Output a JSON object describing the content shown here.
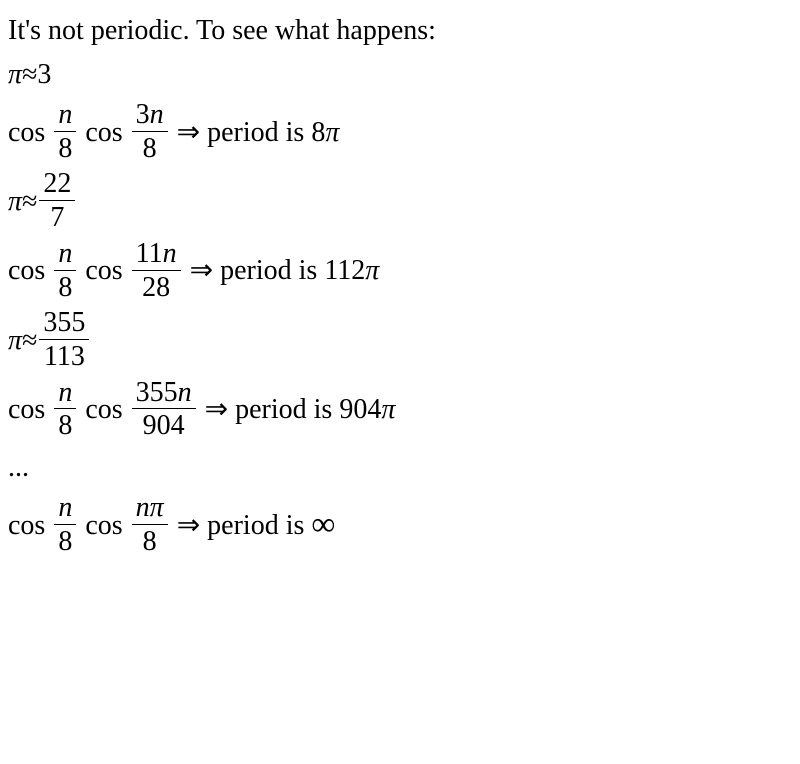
{
  "text": {
    "intro": "It's not periodic. To see what happens:",
    "ellipsis": "..."
  },
  "approx": {
    "a1_lhs": "π",
    "a1_op": "≈",
    "a1_rhs": "3",
    "a2_lhs": "π",
    "a2_op": "≈",
    "a2_num": "22",
    "a2_den": "7",
    "a3_lhs": "π",
    "a3_op": "≈",
    "a3_num": "355",
    "a3_den": "113"
  },
  "expr": {
    "cos": "cos",
    "arrow": "⇒",
    "period_is": "period is",
    "n": "n",
    "pi": "π",
    "infinity": "∞",
    "e1": {
      "f1_num": "n",
      "f1_den": "8",
      "f2_num": "3n",
      "f2_den": "8",
      "period": "8π"
    },
    "e2": {
      "f1_num": "n",
      "f1_den": "8",
      "f2_num": "11n",
      "f2_den": "28",
      "period": "112π"
    },
    "e3": {
      "f1_num": "n",
      "f1_den": "8",
      "f2_num": "355n",
      "f2_den": "904",
      "period": "904π"
    },
    "e4": {
      "f1_num": "n",
      "f1_den": "8",
      "f2_num": "nπ",
      "f2_den": "8"
    }
  }
}
